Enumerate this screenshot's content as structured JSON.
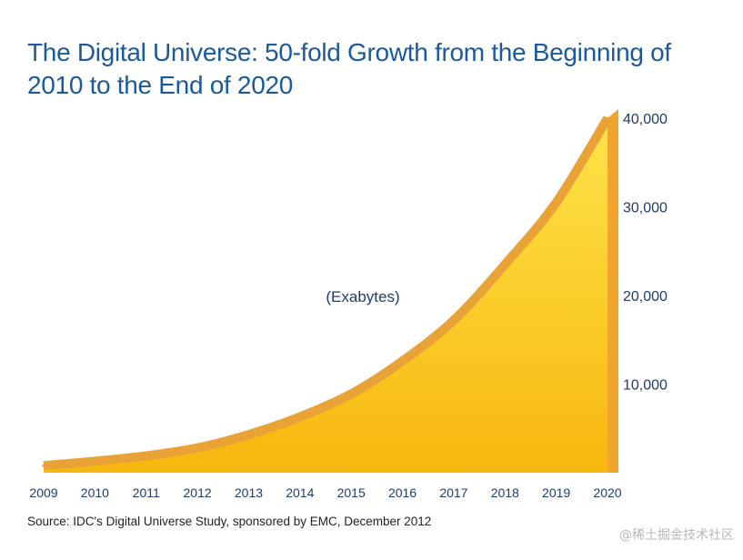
{
  "title": "The Digital Universe: 50-fold Growth from the Beginning of 2010 to the End of 2020",
  "source": "Source: IDC's Digital Universe Study, sponsored by EMC, December 2012",
  "watermark": "@稀土掘金技术社区",
  "colors": {
    "title": "#1a5a9a",
    "area_top": "#fde44a",
    "area_bottom": "#f7b70e",
    "edge": "#e9a235",
    "side": "#f2a52c",
    "axis_text": "#1e3c6e"
  },
  "chart_data": {
    "type": "area",
    "title": "The Digital Universe: 50-fold Growth from the Beginning of 2010 to the End of 2020",
    "unit_label": "(Exabytes)",
    "categories": [
      "2009",
      "2010",
      "2011",
      "2012",
      "2013",
      "2014",
      "2015",
      "2016",
      "2017",
      "2018",
      "2019",
      "2020"
    ],
    "values": [
      800,
      1300,
      1900,
      2800,
      4300,
      6300,
      8900,
      12600,
      17200,
      23500,
      30500,
      40000
    ],
    "ylim": [
      0,
      40000
    ],
    "yticks": [
      10000,
      20000,
      30000,
      40000
    ],
    "ytick_labels": [
      "10,000",
      "20,000",
      "30,000",
      "40,000"
    ],
    "y_axis_position": "right",
    "grid": false
  }
}
